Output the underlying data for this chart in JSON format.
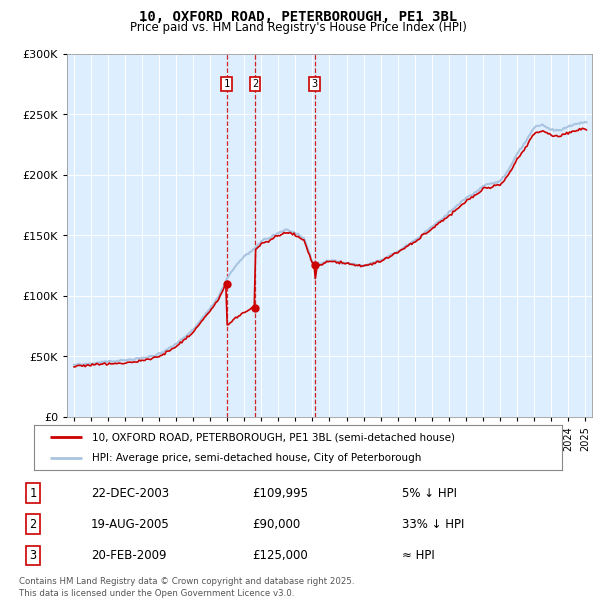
{
  "title": "10, OXFORD ROAD, PETERBOROUGH, PE1 3BL",
  "subtitle": "Price paid vs. HM Land Registry's House Price Index (HPI)",
  "legend_line1": "10, OXFORD ROAD, PETERBOROUGH, PE1 3BL (semi-detached house)",
  "legend_line2": "HPI: Average price, semi-detached house, City of Peterborough",
  "footnote": "Contains HM Land Registry data © Crown copyright and database right 2025.\nThis data is licensed under the Open Government Licence v3.0.",
  "sale_labels": [
    {
      "num": 1,
      "date": "22-DEC-2003",
      "price": "£109,995",
      "relation": "5% ↓ HPI"
    },
    {
      "num": 2,
      "date": "19-AUG-2005",
      "price": "£90,000",
      "relation": "33% ↓ HPI"
    },
    {
      "num": 3,
      "date": "20-FEB-2009",
      "price": "£125,000",
      "relation": "≈ HPI"
    }
  ],
  "sale_points": [
    {
      "year": 2003.97,
      "price": 109995
    },
    {
      "year": 2005.63,
      "price": 90000
    },
    {
      "year": 2009.13,
      "price": 125000
    }
  ],
  "hpi_color": "#aac4e0",
  "sale_color": "#cc0000",
  "plot_bg": "#ddeeff",
  "ylim": [
    0,
    300000
  ],
  "xlim": [
    1994.6,
    2025.4
  ]
}
